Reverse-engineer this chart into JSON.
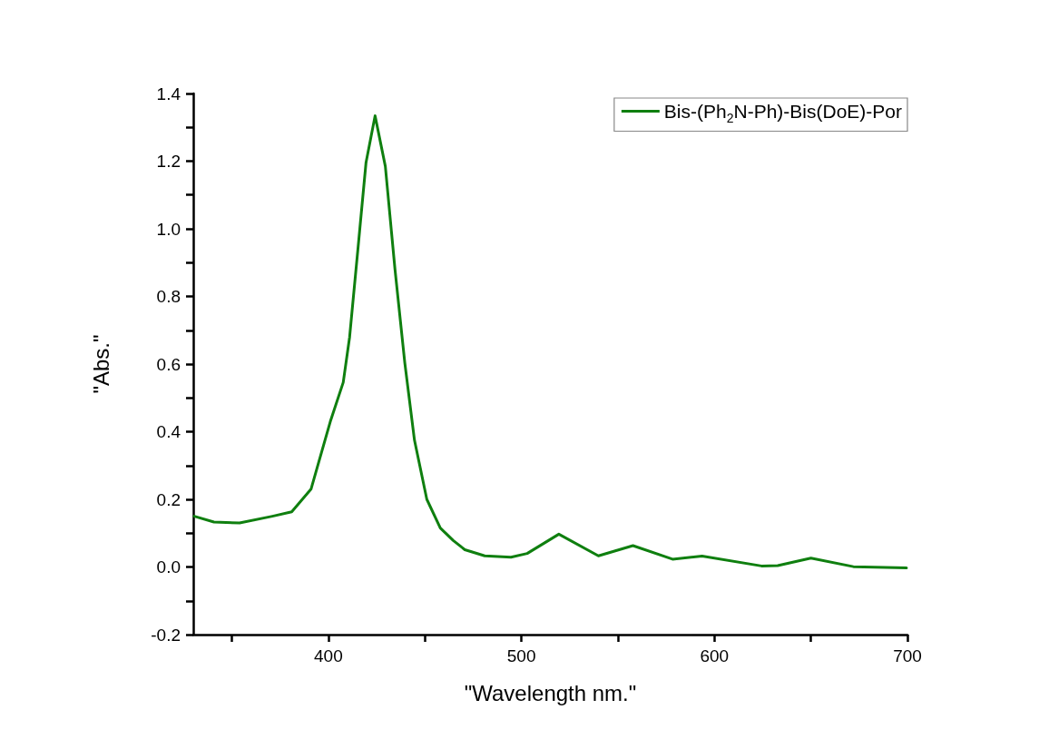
{
  "chart_data": {
    "type": "line",
    "xlabel": "\"Wavelength nm.\"",
    "ylabel": "\"Abs.\"",
    "x": [
      330.5,
      340.7,
      354,
      371,
      381,
      391,
      401,
      407.7,
      411,
      415.3,
      419.5,
      424.2,
      429.5,
      434.5,
      439.6,
      444.6,
      451,
      458,
      464.7,
      470.7,
      481,
      494.6,
      503,
      519.4,
      539.9,
      557.8,
      578.3,
      593.6,
      624.4,
      632.8,
      650,
      672,
      699.5
    ],
    "series": [
      {
        "name": "Bis-(Ph$_{2}$N-Ph)-Bis(DoE)-Por",
        "color": "#0f7f0f",
        "values": [
          0.15,
          0.133,
          0.13,
          0.15,
          0.163,
          0.23,
          0.43,
          0.546,
          0.68,
          0.94,
          1.196,
          1.334,
          1.185,
          0.88,
          0.603,
          0.375,
          0.2,
          0.115,
          0.078,
          0.051,
          0.033,
          0.029,
          0.04,
          0.097,
          0.033,
          0.063,
          0.023,
          0.032,
          0.003,
          0.004,
          0.026,
          0.001,
          -0.003
        ]
      }
    ],
    "xlim": [
      330,
      700
    ],
    "xticks": [
      {
        "value": 350,
        "label": null
      },
      400,
      {
        "value": 450,
        "label": null
      },
      500,
      {
        "value": 550,
        "label": null
      },
      600,
      {
        "value": 650,
        "label": null
      },
      700
    ],
    "ylim": [
      -0.2,
      1.4
    ],
    "yticks": [
      {
        "value": -0.2,
        "label": "-0.2"
      },
      {
        "value": -0.1,
        "label": null
      },
      {
        "value": 0,
        "label": "0.0"
      },
      {
        "value": 0.1,
        "label": null
      },
      {
        "value": 0.2,
        "label": "0.2"
      },
      {
        "value": 0.3,
        "label": null
      },
      {
        "value": 0.4,
        "label": "0.4"
      },
      {
        "value": 0.5,
        "label": null
      },
      {
        "value": 0.6,
        "label": "0.6"
      },
      {
        "value": 0.7,
        "label": null
      },
      {
        "value": 0.8,
        "label": "0.8"
      },
      {
        "value": 0.9,
        "label": null
      },
      {
        "value": 1,
        "label": "1.0"
      },
      {
        "value": 1.1,
        "label": null
      },
      {
        "value": 1.2,
        "label": "1.2"
      },
      {
        "value": 1.3,
        "label": null
      },
      {
        "value": 1.4,
        "label": "1.4"
      }
    ],
    "legend": "top right",
    "marker": "none",
    "line_style": "solid"
  }
}
